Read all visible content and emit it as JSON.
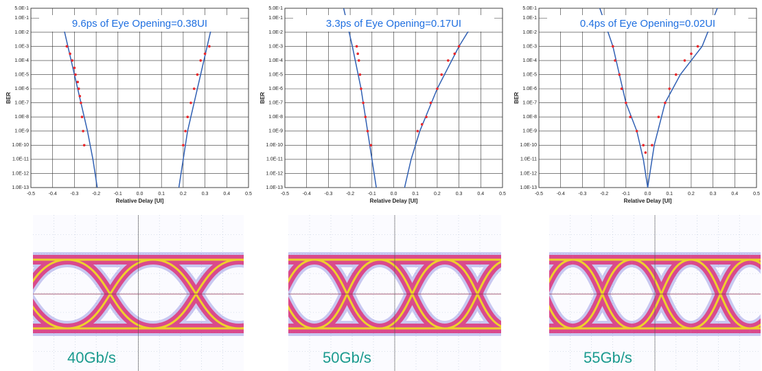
{
  "chart_data": [
    {
      "type": "scatter",
      "title": "9.6ps of Eye Opening=0.38UI",
      "x_label": "Relative Delay [UI]",
      "y_label": "BER",
      "ylog": true,
      "grid": true,
      "xlim": [
        -0.5,
        0.5
      ],
      "xticks": [
        -0.5,
        -0.4,
        -0.3,
        -0.2,
        -0.1,
        {
          "value": 0,
          "label": "0.0"
        },
        0.1,
        0.2,
        0.3,
        0.4,
        0.5
      ],
      "ylim": [
        1e-13,
        0.5
      ],
      "yticks": [
        {
          "value": 0.5,
          "label": "5.0E-1"
        },
        {
          "value": 0.1,
          "label": "1.0E-1"
        },
        {
          "value": 0.01,
          "label": "1.0E-2"
        },
        {
          "value": 0.001,
          "label": "1.0E-3"
        },
        {
          "value": 0.0001,
          "label": "1.0E-4"
        },
        {
          "value": 1e-05,
          "label": "1.0E-5"
        },
        {
          "value": 1e-06,
          "label": "1.0E-6"
        },
        {
          "value": 1e-07,
          "label": "1.0E-7"
        },
        {
          "value": 1e-08,
          "label": "1.0E-8"
        },
        {
          "value": 1e-09,
          "label": "1.0E-9"
        },
        {
          "value": 1e-10,
          "label": "1.0E-10"
        },
        {
          "value": 1e-11,
          "label": "1.0E-11"
        },
        {
          "value": 1e-12,
          "label": "1.0E-12"
        },
        {
          "value": 1e-13,
          "label": "1.0E-13"
        }
      ],
      "series": [
        {
          "type": "scatter",
          "color": "#e8262a",
          "x": [
            -0.335,
            -0.32,
            -0.31,
            -0.3,
            -0.295,
            -0.285,
            -0.28,
            -0.275,
            -0.27,
            -0.265,
            -0.26,
            -0.255
          ],
          "values": [
            0.001,
            0.0003,
            0.0001,
            3e-05,
            1e-05,
            3e-06,
            1e-06,
            3e-07,
            1e-07,
            1e-08,
            1e-09,
            1e-10
          ]
        },
        {
          "type": "scatter",
          "color": "#e8262a",
          "x": [
            0.2,
            0.21,
            0.22,
            0.235,
            0.25,
            0.265,
            0.28,
            0.3,
            0.32
          ],
          "values": [
            1e-10,
            1e-09,
            1e-08,
            1e-07,
            1e-06,
            1e-05,
            0.0001,
            0.0003,
            0.001
          ]
        },
        {
          "type": "line",
          "color": "#2f5fb3",
          "x": [
            -0.36,
            -0.33,
            -0.3,
            -0.27,
            -0.24,
            -0.215,
            -0.195
          ],
          "values": [
            0.1,
            0.001,
            1e-05,
            1e-07,
            1e-09,
            1e-11,
            1e-13
          ]
        },
        {
          "type": "line",
          "color": "#2f5fb3",
          "x": [
            0.18,
            0.2,
            0.22,
            0.25,
            0.28,
            0.31,
            0.34
          ],
          "values": [
            1e-13,
            1e-11,
            1e-09,
            1e-07,
            1e-05,
            0.001,
            0.1
          ]
        }
      ]
    },
    {
      "type": "scatter",
      "title": "3.3ps of Eye Opening=0.17UI",
      "x_label": "Relative Delay [UI]",
      "y_label": "BER",
      "ylog": true,
      "grid": true,
      "xlim": [
        -0.5,
        0.5
      ],
      "xticks": [
        -0.5,
        -0.4,
        -0.3,
        -0.2,
        -0.1,
        {
          "value": 0,
          "label": "0.0"
        },
        0.1,
        0.2,
        0.3,
        0.4,
        0.5
      ],
      "ylim": [
        1e-13,
        0.5
      ],
      "yticks": [
        {
          "value": 0.5,
          "label": "5.0E-1"
        },
        {
          "value": 0.1,
          "label": "1.0E-1"
        },
        {
          "value": 0.01,
          "label": "1.0E-2"
        },
        {
          "value": 0.001,
          "label": "1.0E-3"
        },
        {
          "value": 0.0001,
          "label": "1.0E-4"
        },
        {
          "value": 1e-05,
          "label": "1.0E-5"
        },
        {
          "value": 1e-06,
          "label": "1.0E-6"
        },
        {
          "value": 1e-07,
          "label": "1.0E-7"
        },
        {
          "value": 1e-08,
          "label": "1.0E-8"
        },
        {
          "value": 1e-09,
          "label": "1.0E-9"
        },
        {
          "value": 1e-10,
          "label": "1.0E-10"
        },
        {
          "value": 1e-11,
          "label": "1.0E-11"
        },
        {
          "value": 1e-12,
          "label": "1.0E-12"
        },
        {
          "value": 1e-13,
          "label": "1.0E-13"
        }
      ],
      "series": [
        {
          "type": "scatter",
          "color": "#e8262a",
          "x": [
            -0.17,
            -0.165,
            -0.16,
            -0.155,
            -0.15,
            -0.14,
            -0.13,
            -0.12,
            -0.105
          ],
          "values": [
            0.001,
            0.0003,
            0.0001,
            1e-05,
            1e-06,
            1e-07,
            1e-08,
            1e-09,
            1e-10
          ]
        },
        {
          "type": "scatter",
          "color": "#e8262a",
          "x": [
            0.11,
            0.13,
            0.15,
            0.17,
            0.2,
            0.22,
            0.25,
            0.28,
            0.3
          ],
          "values": [
            1e-09,
            3e-09,
            1e-08,
            1e-07,
            1e-06,
            1e-05,
            0.0001,
            0.0003,
            0.001
          ]
        },
        {
          "type": "line",
          "color": "#2f5fb3",
          "x": [
            -0.23,
            -0.19,
            -0.15,
            -0.12,
            -0.1,
            -0.08
          ],
          "values": [
            0.5,
            0.001,
            1e-06,
            1e-09,
            1e-11,
            1e-13
          ]
        },
        {
          "type": "line",
          "color": "#2f5fb3",
          "x": [
            0.05,
            0.08,
            0.12,
            0.2,
            0.3,
            0.38
          ],
          "values": [
            1e-13,
            1e-11,
            1e-09,
            1e-06,
            0.001,
            0.1
          ]
        }
      ]
    },
    {
      "type": "scatter",
      "title": "0.4ps of Eye Opening=0.02UI",
      "x_label": "Relative Delay [UI]",
      "y_label": "BER",
      "ylog": true,
      "grid": true,
      "xlim": [
        -0.5,
        0.5
      ],
      "xticks": [
        -0.5,
        -0.4,
        -0.3,
        -0.2,
        -0.1,
        {
          "value": 0,
          "label": "0.0"
        },
        0.1,
        0.2,
        0.3,
        0.4,
        0.5
      ],
      "ylim": [
        1e-13,
        0.5
      ],
      "yticks": [
        {
          "value": 0.5,
          "label": "5.0E-1"
        },
        {
          "value": 0.1,
          "label": "1.0E-1"
        },
        {
          "value": 0.01,
          "label": "1.0E-2"
        },
        {
          "value": 0.001,
          "label": "1.0E-3"
        },
        {
          "value": 0.0001,
          "label": "1.0E-4"
        },
        {
          "value": 1e-05,
          "label": "1.0E-5"
        },
        {
          "value": 1e-06,
          "label": "1.0E-6"
        },
        {
          "value": 1e-07,
          "label": "1.0E-7"
        },
        {
          "value": 1e-08,
          "label": "1.0E-8"
        },
        {
          "value": 1e-09,
          "label": "1.0E-9"
        },
        {
          "value": 1e-10,
          "label": "1.0E-10"
        },
        {
          "value": 1e-11,
          "label": "1.0E-11"
        },
        {
          "value": 1e-12,
          "label": "1.0E-12"
        },
        {
          "value": 1e-13,
          "label": "1.0E-13"
        }
      ],
      "series": [
        {
          "type": "scatter",
          "color": "#e8262a",
          "x": [
            -0.16,
            -0.15,
            -0.13,
            -0.12,
            -0.1,
            -0.08,
            -0.05,
            -0.02,
            -0.01
          ],
          "values": [
            0.001,
            0.0001,
            1e-05,
            1e-06,
            1e-07,
            1e-08,
            1e-09,
            1e-10,
            3e-11
          ]
        },
        {
          "type": "scatter",
          "color": "#e8262a",
          "x": [
            0.02,
            0.05,
            0.08,
            0.1,
            0.13,
            0.17,
            0.2,
            0.23
          ],
          "values": [
            1e-10,
            1e-08,
            1e-07,
            1e-06,
            1e-05,
            0.0001,
            0.0003,
            0.001
          ]
        },
        {
          "type": "line",
          "color": "#2f5fb3",
          "x": [
            -0.22,
            -0.16,
            -0.1,
            -0.05,
            -0.02,
            0
          ],
          "values": [
            0.5,
            0.001,
            1e-07,
            1e-09,
            1e-11,
            1e-13
          ]
        },
        {
          "type": "line",
          "color": "#2f5fb3",
          "x": [
            0,
            0.03,
            0.08,
            0.15,
            0.25,
            0.32
          ],
          "values": [
            1e-13,
            1e-10,
            1e-07,
            1e-05,
            0.001,
            0.5
          ]
        }
      ]
    }
  ],
  "eye_diagrams": [
    {
      "label": "40Gb/s"
    },
    {
      "label": "50Gb/s"
    },
    {
      "label": "55Gb/s"
    }
  ]
}
